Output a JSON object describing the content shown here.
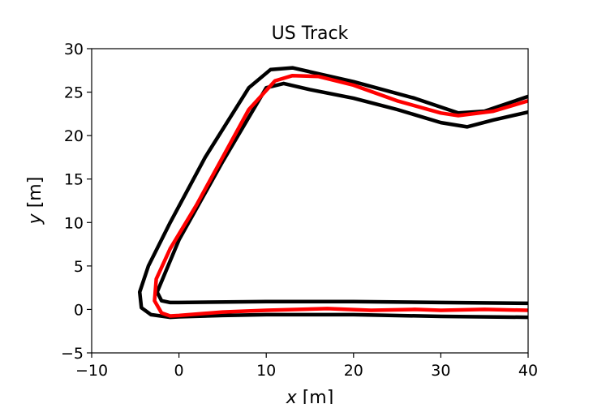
{
  "chart_data": {
    "type": "line",
    "title": "US Track",
    "xlabel_var": "x",
    "xlabel_unit": " [m]",
    "ylabel_var": "y",
    "ylabel_unit": " [m]",
    "xlim": [
      -10,
      40
    ],
    "ylim": [
      -5,
      30
    ],
    "xticks": [
      -10,
      0,
      10,
      20,
      30,
      40
    ],
    "yticks": [
      -5,
      0,
      5,
      10,
      15,
      20,
      25,
      30
    ],
    "grid": false,
    "series": [
      {
        "color": "#000000",
        "x": [
          40,
          35,
          32,
          27,
          20,
          13,
          10.5,
          8,
          3,
          -1,
          -3.5,
          -4.5,
          -4.3,
          -3.2,
          -1,
          0,
          5,
          10,
          20,
          30,
          40
        ],
        "y": [
          24.5,
          22.8,
          22.6,
          24.3,
          26.2,
          27.8,
          27.6,
          25.5,
          17.5,
          10.0,
          5.0,
          2.0,
          0.2,
          -0.6,
          -0.9,
          -0.85,
          -0.7,
          -0.6,
          -0.6,
          -0.8,
          -0.9
        ]
      },
      {
        "color": "#000000",
        "x": [
          40,
          36,
          33,
          30,
          25,
          20,
          15,
          12,
          10,
          5,
          0,
          -2.5,
          -2.0,
          -1,
          0,
          10,
          20,
          30,
          40
        ],
        "y": [
          22.7,
          21.8,
          21.0,
          21.5,
          23.0,
          24.3,
          25.3,
          26.0,
          25.5,
          17.0,
          8.0,
          2.0,
          1.0,
          0.8,
          0.8,
          0.9,
          0.9,
          0.8,
          0.7
        ]
      },
      {
        "color": "#ff0000",
        "x": [
          40,
          36,
          32,
          30,
          25,
          20,
          16,
          13,
          11,
          8,
          5,
          2,
          -1,
          -2.6,
          -2.8,
          -2,
          -1,
          0,
          5,
          10,
          17,
          22,
          27,
          30,
          35,
          40
        ],
        "y": [
          24.0,
          22.8,
          22.3,
          22.6,
          24.0,
          25.8,
          26.8,
          26.9,
          26.3,
          23.0,
          17.5,
          12.0,
          7.0,
          3.5,
          1.0,
          -0.4,
          -0.75,
          -0.7,
          -0.3,
          -0.1,
          0.1,
          -0.1,
          0.0,
          -0.1,
          0.0,
          -0.1
        ]
      }
    ]
  }
}
